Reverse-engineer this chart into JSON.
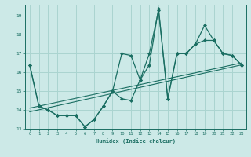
{
  "xlabel": "Humidex (Indice chaleur)",
  "background_color": "#cce9e7",
  "grid_color": "#aad4d0",
  "line_color": "#1a6e62",
  "xlim": [
    -0.5,
    23.5
  ],
  "ylim": [
    13,
    19.6
  ],
  "xticks": [
    0,
    1,
    2,
    3,
    4,
    5,
    6,
    7,
    8,
    9,
    10,
    11,
    12,
    13,
    14,
    15,
    16,
    17,
    18,
    19,
    20,
    21,
    22,
    23
  ],
  "yticks": [
    13,
    14,
    15,
    16,
    17,
    18,
    19
  ],
  "curve1_x": [
    0,
    1,
    2,
    3,
    4,
    5,
    6,
    7,
    8,
    9,
    10,
    11,
    12,
    13,
    14,
    15,
    16,
    17,
    18,
    19,
    20,
    21,
    22,
    23
  ],
  "curve1_y": [
    16.4,
    14.2,
    14.0,
    13.7,
    13.7,
    13.7,
    13.1,
    13.5,
    14.2,
    15.0,
    17.0,
    16.9,
    15.6,
    17.0,
    19.3,
    14.6,
    17.0,
    17.0,
    17.5,
    18.5,
    17.7,
    17.0,
    16.9,
    16.4
  ],
  "curve2_x": [
    0,
    1,
    2,
    3,
    4,
    5,
    6,
    7,
    8,
    9,
    10,
    11,
    12,
    13,
    14,
    15,
    16,
    17,
    18,
    19,
    20,
    21,
    22,
    23
  ],
  "curve2_y": [
    16.4,
    14.2,
    14.0,
    13.7,
    13.7,
    13.7,
    13.1,
    13.5,
    14.2,
    15.0,
    14.6,
    14.5,
    15.6,
    16.4,
    19.4,
    14.6,
    17.0,
    17.0,
    17.5,
    17.7,
    17.7,
    17.0,
    16.9,
    16.4
  ],
  "line1_x": [
    0,
    23
  ],
  "line1_y": [
    13.9,
    16.4
  ],
  "line2_x": [
    0,
    23
  ],
  "line2_y": [
    14.1,
    16.5
  ]
}
